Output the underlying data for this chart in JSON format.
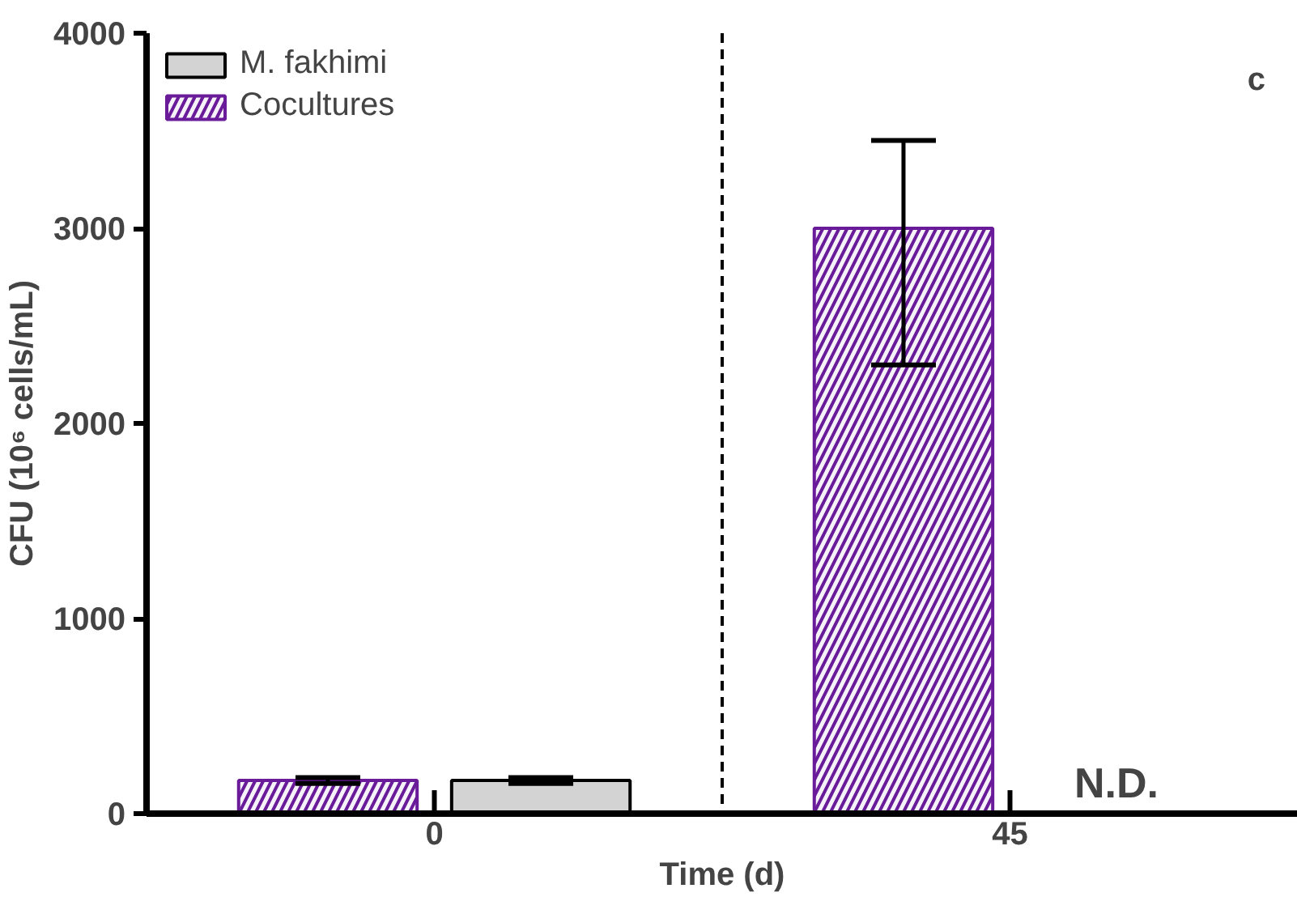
{
  "chart_data": {
    "type": "bar",
    "categories": [
      "0",
      "45"
    ],
    "xlabel": "Time (d)",
    "ylabel": "CFU (10⁶ cells/mL)",
    "series": [
      {
        "name": "Cocultures",
        "color": "#6a1b9a",
        "values": [
          170,
          3000
        ],
        "errors": [
          15,
          [
            2300,
            3450
          ]
        ]
      },
      {
        "name": "M. fakhimi",
        "color": "#d3d3d3",
        "values": [
          170,
          null
        ],
        "errors": [
          15,
          null
        ]
      }
    ],
    "ylim": [
      0,
      4000
    ],
    "yticks": [
      0,
      1000,
      2000,
      3000,
      4000
    ],
    "grid": false,
    "legend": "top left",
    "annotations": [
      "c",
      "N.D."
    ]
  }
}
